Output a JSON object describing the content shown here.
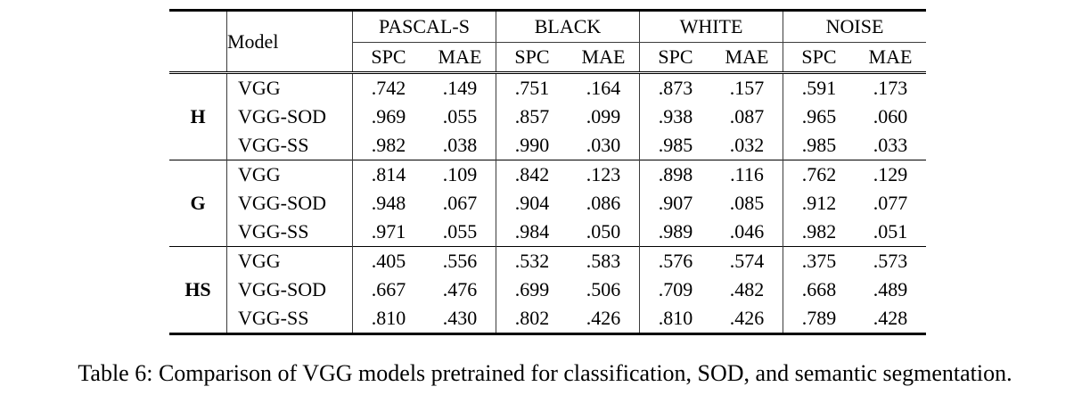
{
  "table": {
    "model_header": "Model",
    "col_groups": [
      {
        "label": "PASCAL-S"
      },
      {
        "label": "BLACK"
      },
      {
        "label": "WHITE"
      },
      {
        "label": "NOISE"
      }
    ],
    "sub_headers": [
      "SPC",
      "MAE"
    ],
    "groups": [
      {
        "label": "H",
        "rows": [
          {
            "model": "VGG",
            "values": [
              ".742",
              ".149",
              ".751",
              ".164",
              ".873",
              ".157",
              ".591",
              ".173"
            ]
          },
          {
            "model": "VGG-SOD",
            "values": [
              ".969",
              ".055",
              ".857",
              ".099",
              ".938",
              ".087",
              ".965",
              ".060"
            ]
          },
          {
            "model": "VGG-SS",
            "values": [
              ".982",
              ".038",
              ".990",
              ".030",
              ".985",
              ".032",
              ".985",
              ".033"
            ]
          }
        ]
      },
      {
        "label": "G",
        "rows": [
          {
            "model": "VGG",
            "values": [
              ".814",
              ".109",
              ".842",
              ".123",
              ".898",
              ".116",
              ".762",
              ".129"
            ]
          },
          {
            "model": "VGG-SOD",
            "values": [
              ".948",
              ".067",
              ".904",
              ".086",
              ".907",
              ".085",
              ".912",
              ".077"
            ]
          },
          {
            "model": "VGG-SS",
            "values": [
              ".971",
              ".055",
              ".984",
              ".050",
              ".989",
              ".046",
              ".982",
              ".051"
            ]
          }
        ]
      },
      {
        "label": "HS",
        "rows": [
          {
            "model": "VGG",
            "values": [
              ".405",
              ".556",
              ".532",
              ".583",
              ".576",
              ".574",
              ".375",
              ".573"
            ]
          },
          {
            "model": "VGG-SOD",
            "values": [
              ".667",
              ".476",
              ".699",
              ".506",
              ".709",
              ".482",
              ".668",
              ".489"
            ]
          },
          {
            "model": "VGG-SS",
            "values": [
              ".810",
              ".430",
              ".802",
              ".426",
              ".810",
              ".426",
              ".789",
              ".428"
            ]
          }
        ]
      }
    ]
  },
  "caption": "Table 6: Comparison of VGG models pretrained for classification, SOD, and semantic segmentation.",
  "chart_data": {
    "type": "table",
    "title": "Table 6: Comparison of VGG models pretrained for classification, SOD, and semantic segmentation.",
    "columns": [
      "Group",
      "Model",
      "PASCAL-S SPC",
      "PASCAL-S MAE",
      "BLACK SPC",
      "BLACK MAE",
      "WHITE SPC",
      "WHITE MAE",
      "NOISE SPC",
      "NOISE MAE"
    ],
    "rows": [
      [
        "H",
        "VGG",
        0.742,
        0.149,
        0.751,
        0.164,
        0.873,
        0.157,
        0.591,
        0.173
      ],
      [
        "H",
        "VGG-SOD",
        0.969,
        0.055,
        0.857,
        0.099,
        0.938,
        0.087,
        0.965,
        0.06
      ],
      [
        "H",
        "VGG-SS",
        0.982,
        0.038,
        0.99,
        0.03,
        0.985,
        0.032,
        0.985,
        0.033
      ],
      [
        "G",
        "VGG",
        0.814,
        0.109,
        0.842,
        0.123,
        0.898,
        0.116,
        0.762,
        0.129
      ],
      [
        "G",
        "VGG-SOD",
        0.948,
        0.067,
        0.904,
        0.086,
        0.907,
        0.085,
        0.912,
        0.077
      ],
      [
        "G",
        "VGG-SS",
        0.971,
        0.055,
        0.984,
        0.05,
        0.989,
        0.046,
        0.982,
        0.051
      ],
      [
        "HS",
        "VGG",
        0.405,
        0.556,
        0.532,
        0.583,
        0.576,
        0.574,
        0.375,
        0.573
      ],
      [
        "HS",
        "VGG-SOD",
        0.667,
        0.476,
        0.699,
        0.506,
        0.709,
        0.482,
        0.668,
        0.489
      ],
      [
        "HS",
        "VGG-SS",
        0.81,
        0.43,
        0.802,
        0.426,
        0.81,
        0.426,
        0.789,
        0.428
      ]
    ]
  }
}
